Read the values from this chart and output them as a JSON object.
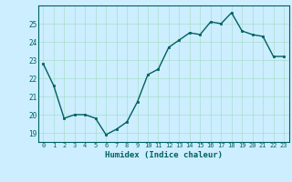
{
  "x": [
    0,
    1,
    2,
    3,
    4,
    5,
    6,
    7,
    8,
    9,
    10,
    11,
    12,
    13,
    14,
    15,
    16,
    17,
    18,
    19,
    20,
    21,
    22,
    23
  ],
  "y": [
    22.8,
    21.6,
    19.8,
    20.0,
    20.0,
    19.8,
    18.9,
    19.2,
    19.6,
    20.7,
    22.2,
    22.5,
    23.7,
    24.1,
    24.5,
    24.4,
    25.1,
    25.0,
    25.6,
    24.6,
    24.4,
    24.3,
    23.2,
    23.2
  ],
  "xlabel": "Humidex (Indice chaleur)",
  "ylim": [
    18.5,
    26.0
  ],
  "xlim": [
    -0.5,
    23.5
  ],
  "yticks": [
    19,
    20,
    21,
    22,
    23,
    24,
    25
  ],
  "xticks": [
    0,
    1,
    2,
    3,
    4,
    5,
    6,
    7,
    8,
    9,
    10,
    11,
    12,
    13,
    14,
    15,
    16,
    17,
    18,
    19,
    20,
    21,
    22,
    23
  ],
  "line_color": "#006060",
  "marker_color": "#006060",
  "bg_color": "#cceeff",
  "grid_color": "#aaddcc",
  "label_color": "#006060"
}
